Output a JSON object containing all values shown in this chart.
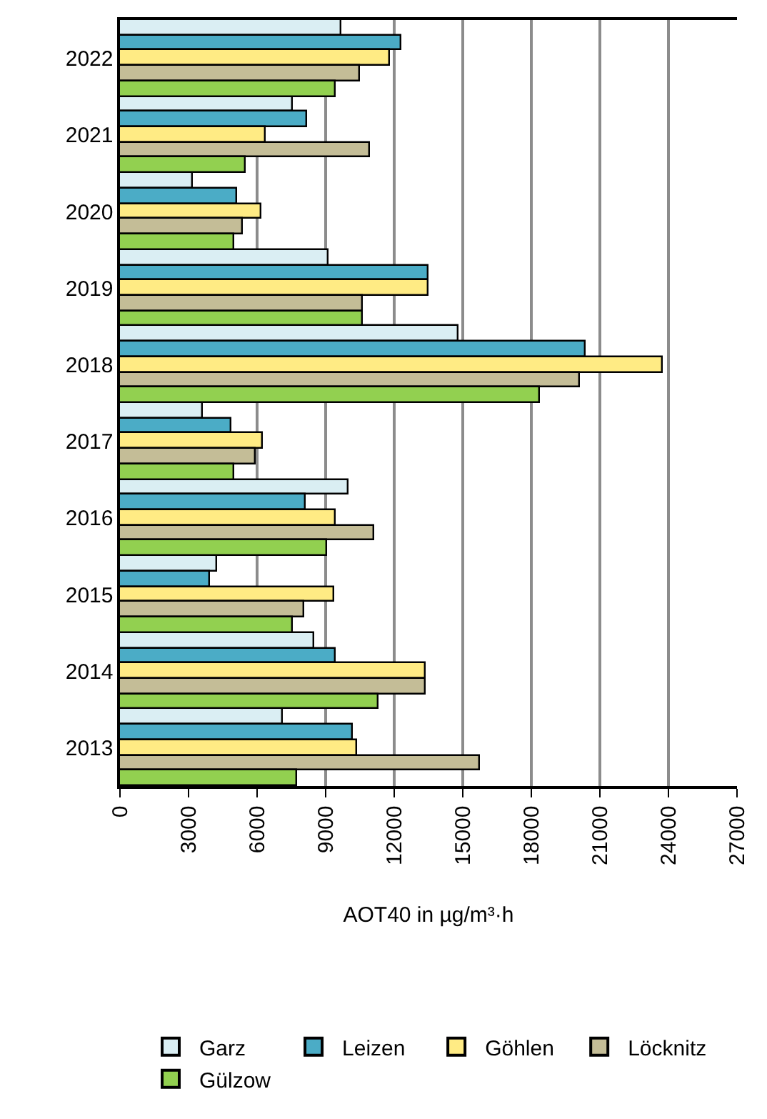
{
  "chart_data": {
    "type": "bar",
    "orientation": "horizontal",
    "xlabel": "AOT40 in µg/m³·h",
    "categories": [
      "2022",
      "2021",
      "2020",
      "2019",
      "2018",
      "2017",
      "2016",
      "2015",
      "2014",
      "2013"
    ],
    "series": [
      {
        "name": "Garz",
        "color": "#daeef3",
        "values": [
          9700,
          7550,
          3200,
          9150,
          14800,
          3600,
          10000,
          4250,
          8500,
          7100
        ]
      },
      {
        "name": "Leizen",
        "color": "#4bacc6",
        "values": [
          12300,
          8200,
          5100,
          13500,
          20400,
          4900,
          8100,
          3950,
          9450,
          10200
        ]
      },
      {
        "name": "Göhlen",
        "color": "#ffeb84",
        "values": [
          11800,
          6400,
          6200,
          13500,
          23750,
          6250,
          9450,
          9350,
          13400,
          10400
        ]
      },
      {
        "name": "Löcknitz",
        "color": "#c4bd97",
        "values": [
          10500,
          10950,
          5400,
          10600,
          20100,
          5950,
          11150,
          8050,
          13400,
          15750
        ]
      },
      {
        "name": "Gülzow",
        "color": "#92d050",
        "values": [
          9450,
          5500,
          5000,
          10600,
          18350,
          5000,
          9050,
          7550,
          11300,
          7750
        ]
      }
    ],
    "xlim": [
      0,
      27000
    ],
    "xticks": [
      0,
      3000,
      6000,
      9000,
      12000,
      15000,
      18000,
      21000,
      24000,
      27000
    ],
    "grid": "x",
    "legend": "bottom"
  }
}
